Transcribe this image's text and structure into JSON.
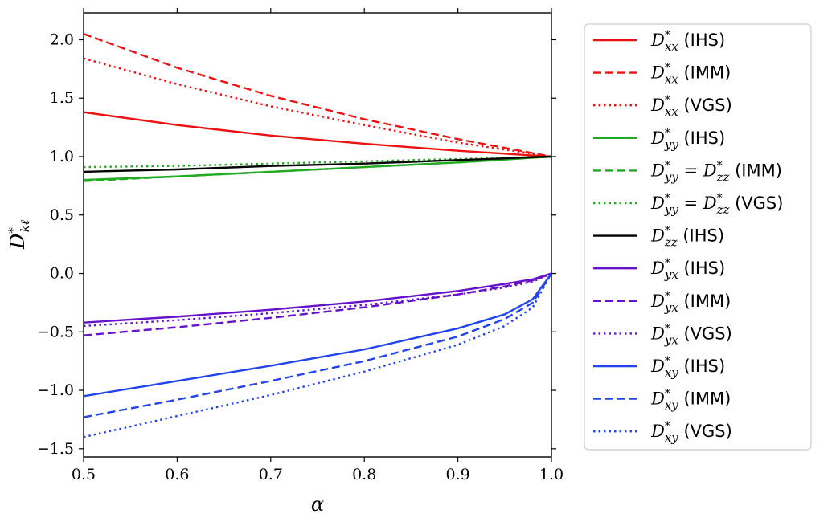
{
  "chart_data": {
    "type": "line",
    "xlabel": "α",
    "ylabel_main": "D",
    "ylabel_sup": "*",
    "ylabel_sub": "kℓ",
    "xlim": [
      0.5,
      1.0
    ],
    "ylim": [
      -1.57,
      2.23
    ],
    "grid": false,
    "legend_position": "outside-right",
    "x_ticks": [
      0.5,
      0.6,
      0.7,
      0.8,
      0.9,
      1.0
    ],
    "x_tick_labels": [
      "0.5",
      "0.6",
      "0.7",
      "0.8",
      "0.9",
      "1.0"
    ],
    "y_ticks": [
      -1.5,
      -1.0,
      -0.5,
      0.0,
      0.5,
      1.0,
      1.5,
      2.0
    ],
    "y_tick_labels": [
      "−1.5",
      "−1.0",
      "−0.5",
      "0.0",
      "0.5",
      "1.0",
      "1.5",
      "2.0"
    ],
    "x": [
      0.5,
      0.6,
      0.7,
      0.8,
      0.9,
      0.95,
      0.98,
      1.0
    ],
    "series": [
      {
        "name": "D*xx (IHS)",
        "main": "D",
        "sub": "xx",
        "rhs": "",
        "tag": "(IHS)",
        "color": "#ee1111",
        "dash": "solid",
        "values": [
          1.38,
          1.27,
          1.18,
          1.11,
          1.05,
          1.025,
          1.01,
          1.0
        ]
      },
      {
        "name": "D*xx (IMM)",
        "main": "D",
        "sub": "xx",
        "rhs": "",
        "tag": "(IMM)",
        "color": "#ee1111",
        "dash": "dashed",
        "values": [
          2.05,
          1.76,
          1.52,
          1.32,
          1.15,
          1.075,
          1.03,
          1.0
        ]
      },
      {
        "name": "D*xx (VGS)",
        "main": "D",
        "sub": "xx",
        "rhs": "",
        "tag": "(VGS)",
        "color": "#ee1111",
        "dash": "dotted",
        "values": [
          1.84,
          1.62,
          1.43,
          1.27,
          1.12,
          1.06,
          1.025,
          1.0
        ]
      },
      {
        "name": "D*yy (IHS)",
        "main": "D",
        "sub": "yy",
        "rhs": "",
        "tag": "(IHS)",
        "color": "#22aa22",
        "dash": "solid",
        "values": [
          0.8,
          0.83,
          0.87,
          0.91,
          0.95,
          0.975,
          0.99,
          1.0
        ]
      },
      {
        "name": "D*yy = D*zz (IMM)",
        "main": "D",
        "sub": "yy",
        "rhs": "zz",
        "tag": "(IMM)",
        "color": "#22aa22",
        "dash": "dashed",
        "values": [
          0.79,
          0.83,
          0.87,
          0.91,
          0.95,
          0.975,
          0.99,
          1.0
        ]
      },
      {
        "name": "D*yy = D*zz (VGS)",
        "main": "D",
        "sub": "yy",
        "rhs": "zz",
        "tag": "(VGS)",
        "color": "#22aa22",
        "dash": "dotted",
        "values": [
          0.91,
          0.92,
          0.94,
          0.96,
          0.98,
          0.99,
          0.996,
          1.0
        ]
      },
      {
        "name": "D*zz (IHS)",
        "main": "D",
        "sub": "zz",
        "rhs": "",
        "tag": "(IHS)",
        "color": "#000000",
        "dash": "solid",
        "values": [
          0.87,
          0.89,
          0.92,
          0.94,
          0.97,
          0.985,
          0.995,
          1.0
        ]
      },
      {
        "name": "D*yx (IHS)",
        "main": "D",
        "sub": "yx",
        "rhs": "",
        "tag": "(IHS)",
        "color": "#6611cc",
        "dash": "solid",
        "values": [
          -0.42,
          -0.37,
          -0.31,
          -0.24,
          -0.15,
          -0.09,
          -0.05,
          0.0
        ]
      },
      {
        "name": "D*yx (IMM)",
        "main": "D",
        "sub": "yx",
        "rhs": "",
        "tag": "(IMM)",
        "color": "#6611cc",
        "dash": "dashed",
        "values": [
          -0.53,
          -0.46,
          -0.38,
          -0.29,
          -0.18,
          -0.11,
          -0.06,
          0.0
        ]
      },
      {
        "name": "D*yx (VGS)",
        "main": "D",
        "sub": "yx",
        "rhs": "",
        "tag": "(VGS)",
        "color": "#6611cc",
        "dash": "dotted",
        "values": [
          -0.45,
          -0.4,
          -0.34,
          -0.27,
          -0.18,
          -0.12,
          -0.07,
          0.0
        ]
      },
      {
        "name": "D*xy (IHS)",
        "main": "D",
        "sub": "xy",
        "rhs": "",
        "tag": "(IHS)",
        "color": "#2244ee",
        "dash": "solid",
        "values": [
          -1.05,
          -0.92,
          -0.79,
          -0.65,
          -0.47,
          -0.35,
          -0.22,
          0.0
        ]
      },
      {
        "name": "D*xy (IMM)",
        "main": "D",
        "sub": "xy",
        "rhs": "",
        "tag": "(IMM)",
        "color": "#2244ee",
        "dash": "dashed",
        "values": [
          -1.23,
          -1.08,
          -0.92,
          -0.75,
          -0.54,
          -0.39,
          -0.25,
          0.0
        ]
      },
      {
        "name": "D*xy (VGS)",
        "main": "D",
        "sub": "xy",
        "rhs": "",
        "tag": "(VGS)",
        "color": "#2244ee",
        "dash": "dotted",
        "values": [
          -1.4,
          -1.22,
          -1.04,
          -0.84,
          -0.61,
          -0.45,
          -0.29,
          0.0
        ]
      }
    ]
  }
}
